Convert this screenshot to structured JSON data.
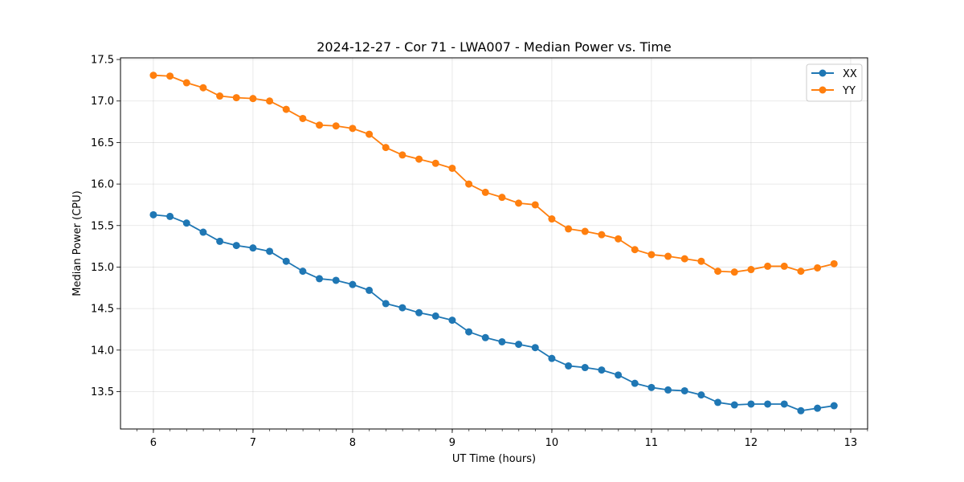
{
  "chart_data": {
    "type": "line",
    "title": "2024-12-27 - Cor 71 - LWA007 - Median Power vs. Time",
    "xlabel": "UT Time (hours)",
    "ylabel": "Median Power (CPU)",
    "xlim": [
      5.67,
      13.17
    ],
    "ylim": [
      13.05,
      17.52
    ],
    "xticks": [
      6,
      7,
      8,
      9,
      10,
      11,
      12,
      13
    ],
    "yticks": [
      13.5,
      14.0,
      14.5,
      15.0,
      15.5,
      16.0,
      16.5,
      17.0,
      17.5
    ],
    "minor_x_step": 0.1667,
    "grid": true,
    "legend_position": "top-right",
    "x": [
      6.0,
      6.1667,
      6.3333,
      6.5,
      6.6667,
      6.8333,
      7.0,
      7.1667,
      7.3333,
      7.5,
      7.6667,
      7.8333,
      8.0,
      8.1667,
      8.3333,
      8.5,
      8.6667,
      8.8333,
      9.0,
      9.1667,
      9.3333,
      9.5,
      9.6667,
      9.8333,
      10.0,
      10.1667,
      10.3333,
      10.5,
      10.6667,
      10.8333,
      11.0,
      11.1667,
      11.3333,
      11.5,
      11.6667,
      11.8333,
      12.0,
      12.1667,
      12.3333,
      12.5,
      12.6667,
      12.8333
    ],
    "series": [
      {
        "name": "XX",
        "color": "#1f77b4",
        "values": [
          15.63,
          15.61,
          15.53,
          15.42,
          15.31,
          15.26,
          15.23,
          15.19,
          15.07,
          14.95,
          14.86,
          14.84,
          14.79,
          14.72,
          14.56,
          14.51,
          14.45,
          14.41,
          14.36,
          14.22,
          14.15,
          14.1,
          14.07,
          14.03,
          13.9,
          13.81,
          13.79,
          13.76,
          13.7,
          13.6,
          13.55,
          13.52,
          13.51,
          13.46,
          13.37,
          13.34,
          13.35,
          13.35,
          13.35,
          13.27,
          13.3,
          13.33
        ]
      },
      {
        "name": "YY",
        "color": "#ff7f0e",
        "values": [
          17.31,
          17.3,
          17.22,
          17.16,
          17.06,
          17.04,
          17.03,
          17.0,
          16.9,
          16.79,
          16.71,
          16.7,
          16.67,
          16.6,
          16.44,
          16.35,
          16.3,
          16.25,
          16.19,
          16.0,
          15.9,
          15.84,
          15.77,
          15.75,
          15.58,
          15.46,
          15.43,
          15.39,
          15.34,
          15.21,
          15.15,
          15.13,
          15.1,
          15.07,
          14.95,
          14.94,
          14.97,
          15.01,
          15.01,
          14.95,
          14.99,
          15.04
        ]
      }
    ]
  }
}
